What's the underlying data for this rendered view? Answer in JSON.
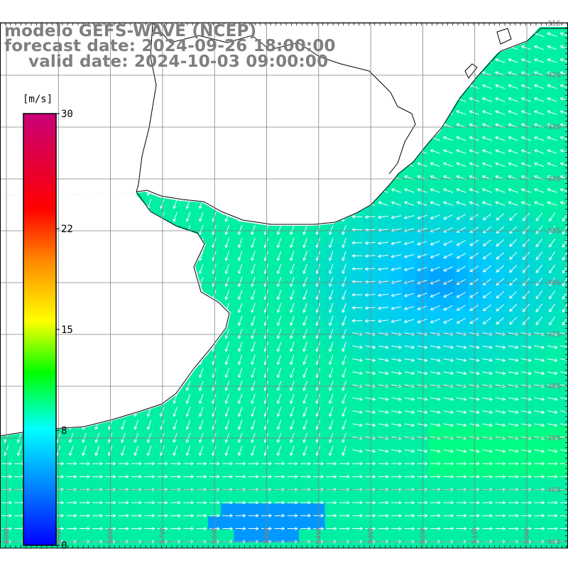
{
  "header": {
    "model_line": "modelo GEFS-WAVE (NCEP)",
    "forecast_line": "forecast date: 2024-09-26 18:00:00",
    "valid_line": "valid date: 2024-10-03 09:00:00"
  },
  "colorbar": {
    "unit": "[m/s]",
    "ticks": [
      "30",
      "22",
      "15",
      "8",
      "0"
    ],
    "tick_values": [
      30,
      22,
      15,
      8,
      0
    ],
    "colors": [
      "#0000ff",
      "#0088ff",
      "#00ffff",
      "#00ff00",
      "#ffff00",
      "#ff8800",
      "#ff0000",
      "#c80078"
    ]
  },
  "map": {
    "lat_labels": [
      "31S",
      "32S",
      "33S",
      "34S",
      "35S",
      "36S",
      "37S",
      "38S",
      "39S",
      "40S",
      "41S"
    ],
    "lon_labels": [
      "60W",
      "59W",
      "58W",
      "57W",
      "56W",
      "55W",
      "54W",
      "53W",
      "52W",
      "51W",
      "50W"
    ],
    "land_color": "#ffffff",
    "coast_color": "#000000",
    "grid_color": "#808080",
    "arrow_color": "#ffffff"
  }
}
